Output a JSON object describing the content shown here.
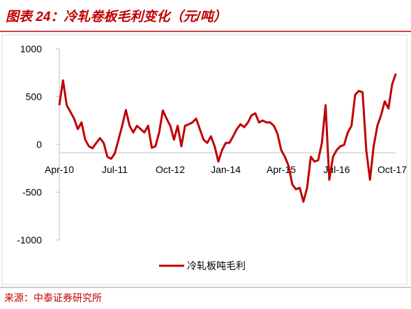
{
  "chart_data": {
    "type": "line",
    "title": "图表 24：冷轧卷板毛利变化（元/吨）",
    "source": "来源：中泰证券研究所",
    "categories": [
      "Apr-10",
      null,
      null,
      null,
      null,
      null,
      null,
      null,
      null,
      null,
      null,
      null,
      null,
      null,
      null,
      "Jul-11",
      null,
      null,
      null,
      null,
      null,
      null,
      null,
      null,
      null,
      null,
      null,
      null,
      null,
      null,
      "Oct-12",
      null,
      null,
      null,
      null,
      null,
      null,
      null,
      null,
      null,
      null,
      null,
      null,
      null,
      null,
      "Jan-14",
      null,
      null,
      null,
      null,
      null,
      null,
      null,
      null,
      null,
      null,
      null,
      null,
      null,
      null,
      "Apr-15",
      null,
      null,
      null,
      null,
      null,
      null,
      null,
      null,
      null,
      null,
      null,
      null,
      null,
      null,
      "Jul-16",
      null,
      null,
      null,
      null,
      null,
      null,
      null,
      null,
      null,
      null,
      null,
      null,
      null,
      null,
      "Oct-17",
      null
    ],
    "series": [
      {
        "name": "冷轧板吨毛利",
        "color": "#c00000",
        "values": [
          410,
          670,
          410,
          340,
          270,
          160,
          230,
          50,
          -20,
          -40,
          15,
          65,
          15,
          -130,
          -150,
          -95,
          50,
          195,
          360,
          195,
          125,
          195,
          160,
          125,
          195,
          -35,
          -20,
          125,
          355,
          270,
          195,
          50,
          195,
          -20,
          195,
          210,
          230,
          270,
          160,
          50,
          15,
          85,
          -20,
          -180,
          -60,
          15,
          15,
          85,
          160,
          210,
          180,
          230,
          305,
          325,
          230,
          250,
          230,
          230,
          195,
          110,
          -60,
          -130,
          -225,
          -420,
          -470,
          -455,
          -600,
          -455,
          -130,
          -180,
          -165,
          15,
          410,
          -370,
          -130,
          -60,
          -20,
          -5,
          125,
          195,
          520,
          560,
          545,
          -60,
          -370,
          -20,
          195,
          305,
          450,
          375,
          630,
          740
        ]
      }
    ],
    "ylim": [
      -1000,
      1000
    ],
    "yticks": [
      -1000,
      -500,
      0,
      500,
      1000
    ],
    "legend": "bottom"
  }
}
